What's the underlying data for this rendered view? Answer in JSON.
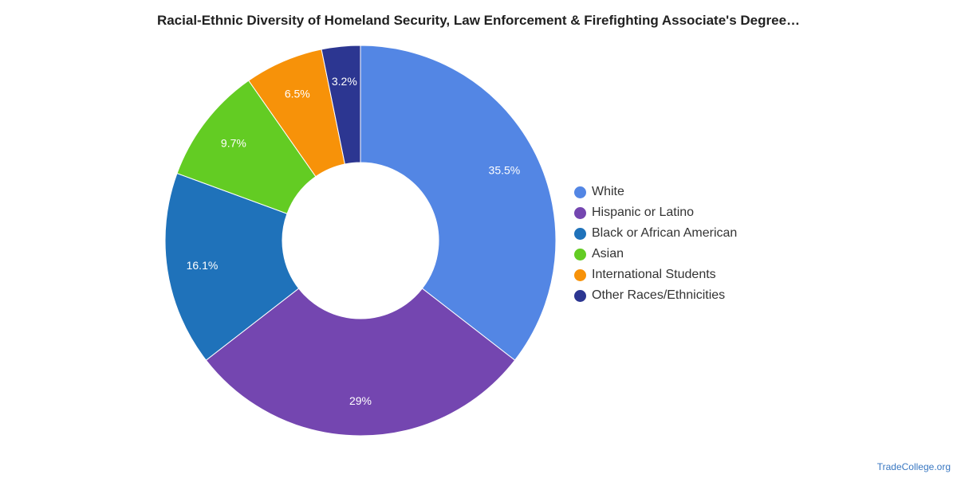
{
  "chart_data": {
    "type": "pie",
    "title": "Racial-Ethnic Diversity of Homeland Security, Law Enforcement & Firefighting Associate's Degree…",
    "categories": [
      "White",
      "Hispanic or Latino",
      "Black or African American",
      "Asian",
      "International Students",
      "Other Races/Ethnicities"
    ],
    "values": [
      35.5,
      29,
      16.1,
      9.7,
      6.5,
      3.2
    ],
    "value_labels": [
      "35.5%",
      "29%",
      "16.1%",
      "9.7%",
      "6.5%",
      "3.2%"
    ],
    "colors": [
      "#5386e4",
      "#7446b0",
      "#1f72ba",
      "#63cc23",
      "#f79209",
      "#2c3691"
    ],
    "donut": true,
    "legend_position": "right"
  },
  "credit": "TradeCollege.org"
}
